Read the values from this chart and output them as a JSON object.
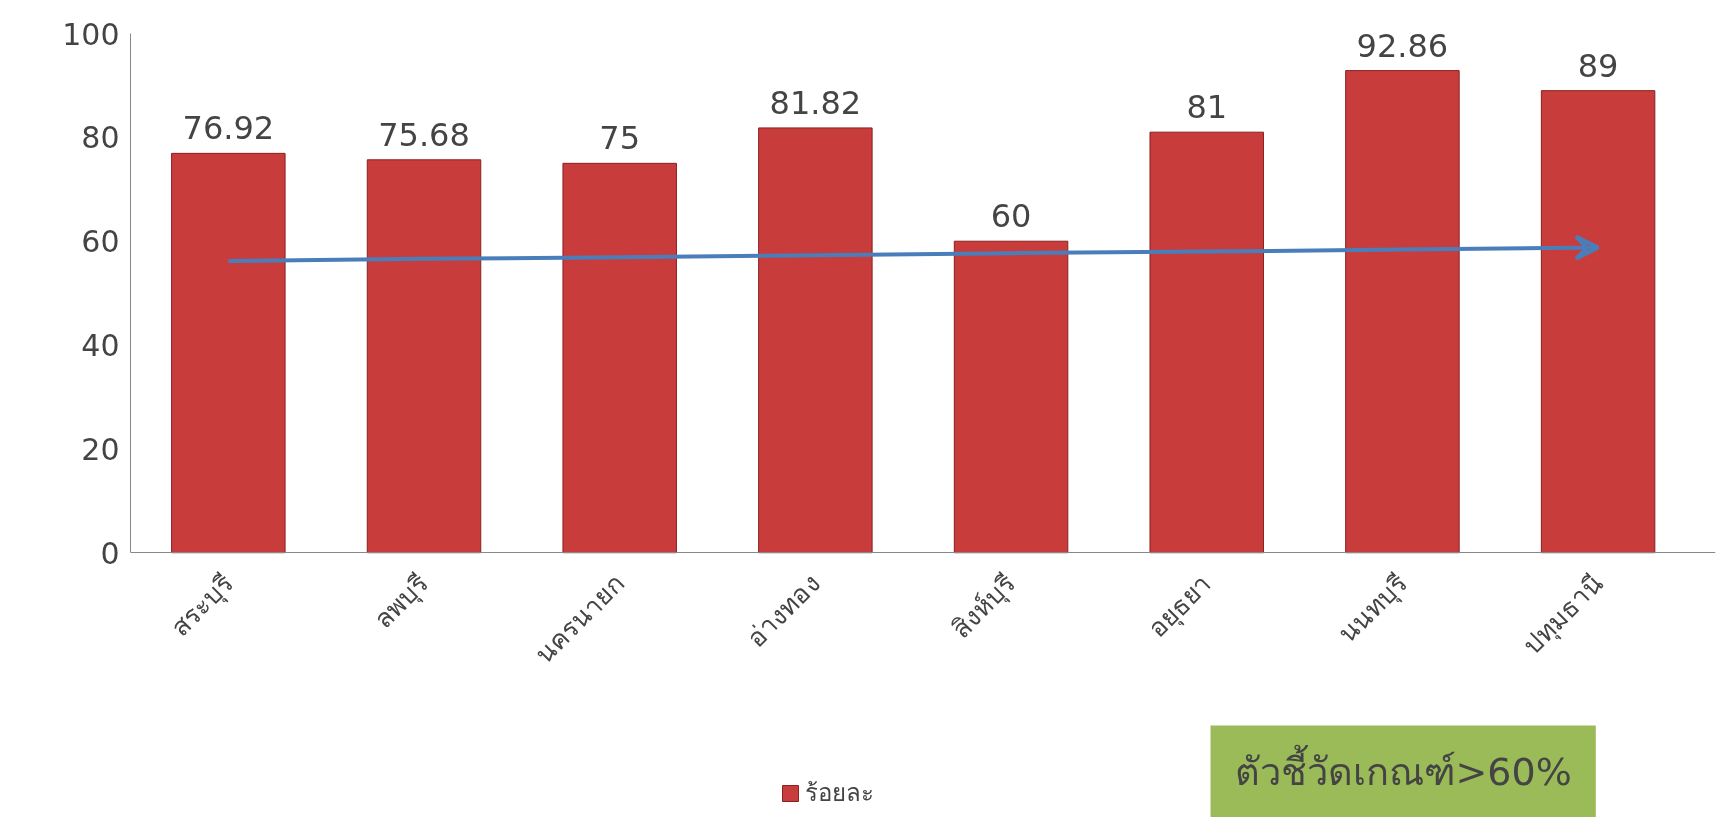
{
  "chart_data": {
    "type": "bar",
    "categories": [
      "สระบุรี",
      "ลพบุรี",
      "นครนายก",
      "อ่างทอง",
      "สิงห์บุรี",
      "อยุธยา",
      "นนทบุรี",
      "ปทุมธานี"
    ],
    "series": [
      {
        "name": "ร้อยละ",
        "color": "#c93c3c",
        "values": [
          76.92,
          75.68,
          75,
          81.82,
          60,
          81,
          92.86,
          89
        ],
        "value_labels": [
          "76.92",
          "75.68",
          "75",
          "81.82",
          "60",
          "81",
          "92.86",
          "89"
        ]
      },
      {
        "type": "line",
        "color": "#4a7ebb",
        "values": [
          56.2,
          56.6,
          56.9,
          57.3,
          57.7,
          58.0,
          58.4,
          58.8
        ]
      }
    ],
    "ylim": [
      0,
      100
    ],
    "yticks": [
      0,
      20,
      40,
      60,
      80,
      100
    ],
    "grid": false,
    "legend": "bottom",
    "annotations": [
      "ตัวชี้วัดเกณฑ์>60%"
    ]
  }
}
